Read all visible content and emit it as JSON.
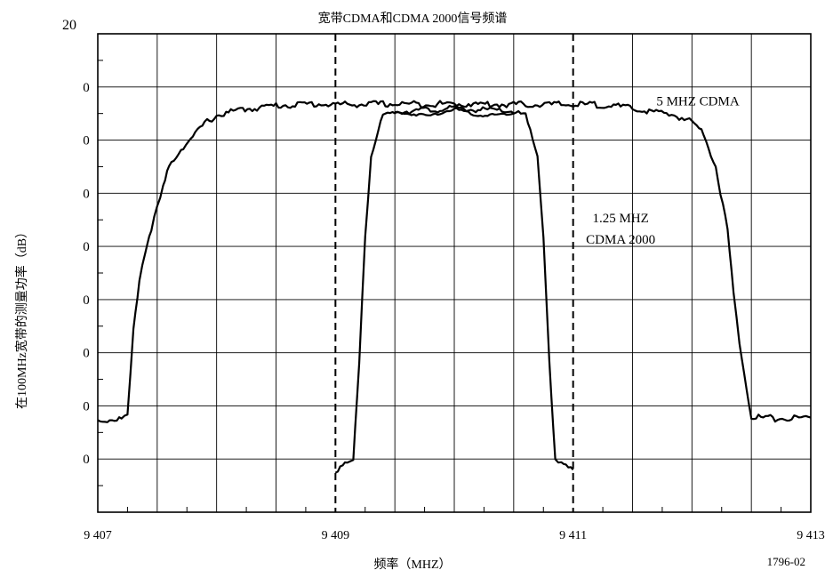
{
  "chart_data": {
    "type": "line",
    "title": "宽带CDMA和CDMA 2000信号频谱",
    "xlabel": "频率（MHZ）",
    "ylabel": "在100MHz宽带的测量功率（dB）",
    "figure_id": "1796-02",
    "corner_label": "20",
    "xlim": [
      9407,
      9413
    ],
    "ylim": [
      -70,
      20
    ],
    "x_ticks": [
      9407,
      9409,
      9411,
      9413
    ],
    "x_tick_labels": [
      "9 407",
      "9 409",
      "9 411",
      "9 413"
    ],
    "y_tick_labels": [
      "0",
      "0",
      "0",
      "0",
      "0",
      "0",
      "0",
      "0"
    ],
    "grid": true,
    "vertical_markers": [
      9409,
      9411
    ],
    "annotations": [
      {
        "text": "5 MHZ CDMA",
        "x": 9412.05,
        "y": 6.5
      },
      {
        "text": "1.25 MHZ",
        "x": 9411.4,
        "y": -15.5
      },
      {
        "text": "CDMA 2000",
        "x": 9411.4,
        "y": -19.5
      }
    ],
    "series": [
      {
        "x": [
          9407.0,
          9407.1,
          9407.2,
          9407.25,
          9407.3,
          9407.35,
          9407.4,
          9407.45,
          9407.5,
          9407.55,
          9407.6,
          9407.7,
          9407.8,
          9407.9,
          9408.0,
          9408.2,
          9408.5,
          9408.8,
          9409.0,
          9409.5,
          9410.0,
          9410.5,
          9411.0,
          9411.3,
          9411.5,
          9411.7,
          9411.85,
          9412.0,
          9412.1,
          9412.2,
          9412.3,
          9412.35,
          9412.4,
          9412.5,
          9412.7,
          9412.9,
          9413.0
        ],
        "y": [
          -52.8,
          -52.6,
          -52.4,
          -52.0,
          -36,
          -26,
          -21,
          -16.5,
          -13,
          -9,
          -5,
          -1.6,
          0.5,
          3.2,
          4.6,
          5.7,
          6.5,
          6.8,
          6.7,
          6.8,
          6.8,
          6.7,
          6.7,
          6.6,
          5.9,
          5.2,
          4.7,
          3.5,
          1.3,
          -5.0,
          -17,
          -29,
          -38,
          -52.0,
          -52.4,
          -52.3,
          -52.2
        ]
      },
      {
        "x": [
          9409.0,
          9409.1,
          9409.15,
          9409.2,
          9409.25,
          9409.3,
          9409.4,
          9409.5,
          9409.7,
          9410.0,
          9410.3,
          9410.5,
          9410.6,
          9410.7,
          9410.75,
          9410.8,
          9410.85,
          9410.9,
          9411.0
        ],
        "y": [
          -62.0,
          -61.0,
          -60.5,
          -41.5,
          -18.0,
          -3.0,
          4.5,
          5.4,
          5.6,
          5.9,
          5.6,
          5.4,
          4.5,
          -3.0,
          -18.0,
          -41.5,
          -60.5,
          -61.0,
          -62.0
        ]
      },
      {
        "x": [
          9409.5,
          9409.8,
          9410.0,
          9410.2,
          9410.5
        ],
        "y": [
          5.2,
          4.6,
          5.9,
          4.6,
          5.0
        ]
      }
    ]
  }
}
